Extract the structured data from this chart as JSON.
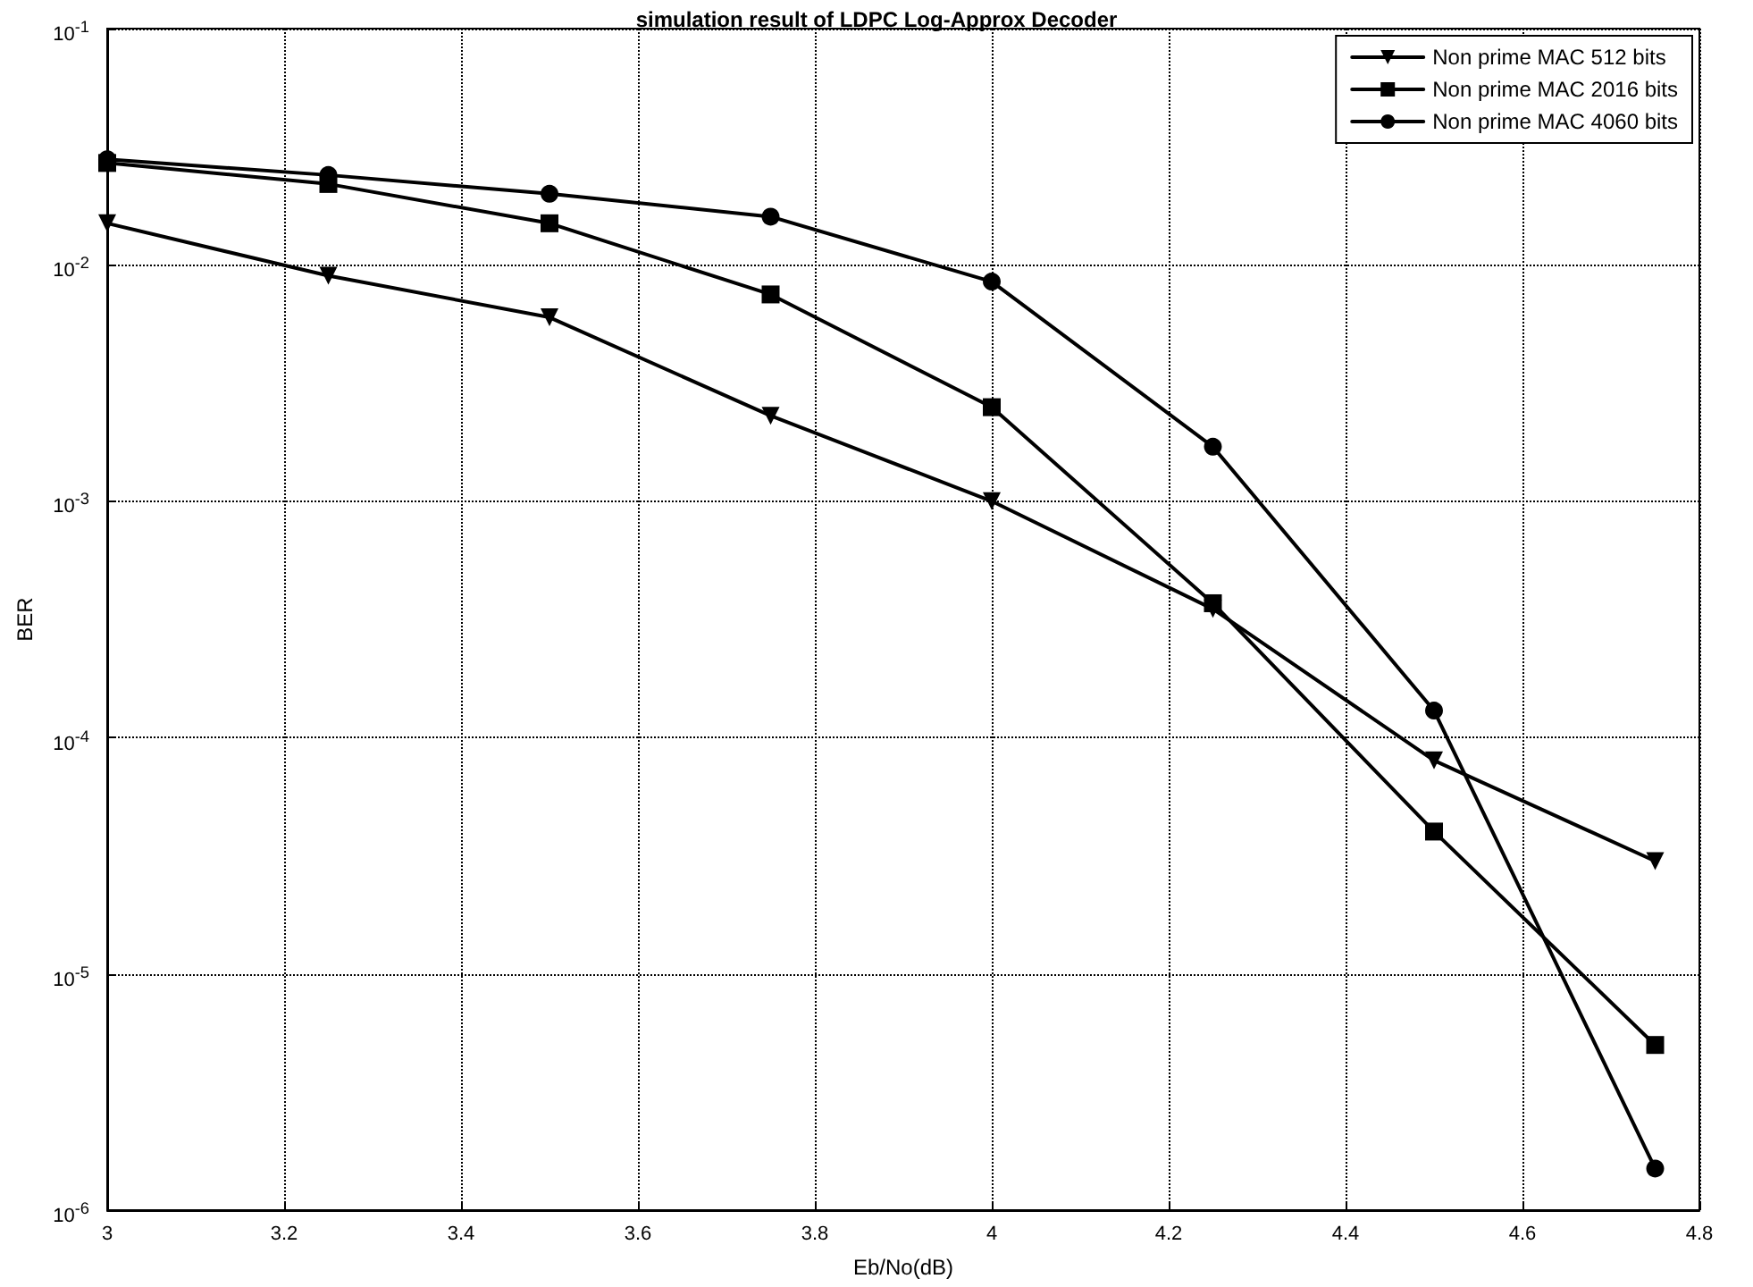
{
  "chart_data": {
    "type": "line",
    "title": "simulation result of LDPC Log-Approx Decoder",
    "xlabel": "Eb/No(dB)",
    "ylabel": "BER",
    "x": [
      3,
      3.25,
      3.5,
      3.75,
      4,
      4.25,
      4.5,
      4.75
    ],
    "series": [
      {
        "name": "Non prime MAC 512 bits",
        "color": "#000000",
        "marker": "triangle",
        "values": [
          0.015,
          0.009,
          0.006,
          0.0023,
          0.001,
          0.00035,
          8e-05,
          3e-05
        ]
      },
      {
        "name": "Non prime MAC 2016 bits",
        "color": "#000000",
        "marker": "square",
        "values": [
          0.027,
          0.022,
          0.015,
          0.0075,
          0.0025,
          0.00037,
          4e-05,
          5e-06
        ]
      },
      {
        "name": "Non prime MAC 4060 bits",
        "color": "#000000",
        "marker": "circle",
        "values": [
          0.028,
          0.024,
          0.02,
          0.016,
          0.0085,
          0.0017,
          0.00013,
          1.5e-06
        ]
      }
    ],
    "xlim": [
      3,
      4.8
    ],
    "xticks": [
      3,
      3.2,
      3.4,
      3.6,
      3.8,
      4,
      4.2,
      4.4,
      4.6,
      4.8
    ],
    "ylim": [
      1e-06,
      0.1
    ],
    "yticks": [
      {
        "value": 1e-06,
        "label": "10$^{-6}$"
      },
      {
        "value": 1e-05,
        "label": "10$^{-5}$"
      },
      {
        "value": 0.0001,
        "label": "10$^{-4}$"
      },
      {
        "value": 0.001,
        "label": "10$^{-3}$"
      },
      {
        "value": 0.01,
        "label": "10$^{-2}$"
      },
      {
        "value": 0.1,
        "label": "10$^{-1}$"
      }
    ],
    "log": "y",
    "grid": true,
    "legend": "top right",
    "line_style": "solid"
  }
}
